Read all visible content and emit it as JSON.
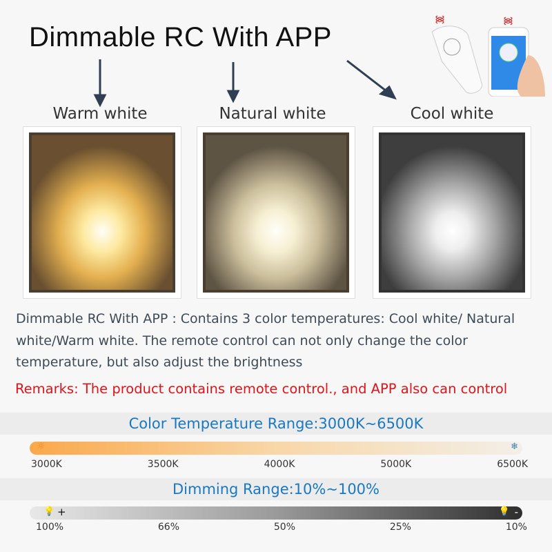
{
  "title": "Dimmable RC With APP",
  "panels": [
    {
      "label": "Warm white",
      "color": "#f2c879"
    },
    {
      "label": "Natural white",
      "color": "#efe2c2"
    },
    {
      "label": "Cool white",
      "color": "#d8d8d8"
    }
  ],
  "description": "Dimmable RC With APP : Contains 3 color temperatures: Cool white/ Natural white/Warm white. The remote control can not only change the color temperature, but also adjust the brightness",
  "remarks": "Remarks: The product contains remote control., and APP also can control",
  "color_temperature": {
    "title": "Color Temperature Range:3000K~6500K",
    "ticks": [
      "3000K",
      "3500K",
      "4000K",
      "5000K",
      "6500K"
    ],
    "gradient": [
      "#fba84a",
      "#f3efe8"
    ],
    "icons": [
      "sun-icon",
      "snowflake-icon"
    ]
  },
  "dimming": {
    "title": "Dimming Range:10%~100%",
    "ticks": [
      "100%",
      "66%",
      "50%",
      "25%",
      "10%"
    ],
    "plus": "+",
    "minus": "-",
    "gradient": [
      "#e8e8e8",
      "#2f2f2f"
    ],
    "icons": [
      "bulb-icon",
      "bulb-icon"
    ]
  }
}
